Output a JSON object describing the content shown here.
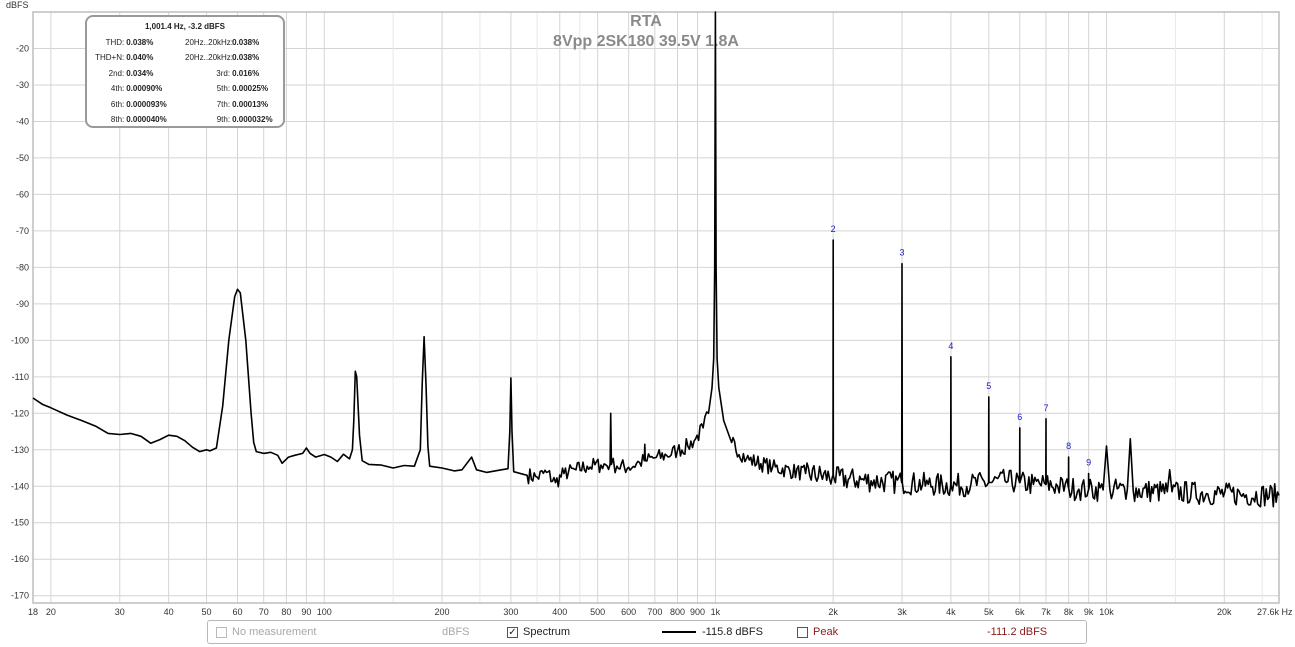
{
  "chart_data": {
    "type": "line",
    "title": "RTA",
    "subtitle": "8Vpp 2SK180 39.5V 1.8A",
    "ylabel": "dBFS",
    "xlabel": "Hz",
    "x_scale": "log",
    "xlim": [
      18,
      27600
    ],
    "ylim": [
      -172,
      -10
    ],
    "y_ticks": [
      -20,
      -30,
      -40,
      -50,
      -60,
      -70,
      -80,
      -90,
      -100,
      -110,
      -120,
      -130,
      -140,
      -150,
      -160,
      -170
    ],
    "x_ticks": [
      {
        "v": 18,
        "l": "18"
      },
      {
        "v": 20,
        "l": "20"
      },
      {
        "v": 30,
        "l": "30"
      },
      {
        "v": 40,
        "l": "40"
      },
      {
        "v": 50,
        "l": "50"
      },
      {
        "v": 60,
        "l": "60"
      },
      {
        "v": 70,
        "l": "70"
      },
      {
        "v": 80,
        "l": "80"
      },
      {
        "v": 90,
        "l": "90"
      },
      {
        "v": 100,
        "l": "100"
      },
      {
        "v": 200,
        "l": "200"
      },
      {
        "v": 300,
        "l": "300"
      },
      {
        "v": 400,
        "l": "400"
      },
      {
        "v": 500,
        "l": "500"
      },
      {
        "v": 600,
        "l": "600"
      },
      {
        "v": 700,
        "l": "700"
      },
      {
        "v": 800,
        "l": "800"
      },
      {
        "v": 900,
        "l": "900"
      },
      {
        "v": 1000,
        "l": "1k"
      },
      {
        "v": 2000,
        "l": "2k"
      },
      {
        "v": 3000,
        "l": "3k"
      },
      {
        "v": 4000,
        "l": "4k"
      },
      {
        "v": 5000,
        "l": "5k"
      },
      {
        "v": 6000,
        "l": "6k"
      },
      {
        "v": 7000,
        "l": "7k"
      },
      {
        "v": 8000,
        "l": "8k"
      },
      {
        "v": 9000,
        "l": "9k"
      },
      {
        "v": 10000,
        "l": "10k"
      },
      {
        "v": 20000,
        "l": "20k"
      },
      {
        "v": 27600,
        "l": "27.6k Hz"
      }
    ],
    "x_minor": [
      150,
      250,
      350,
      450,
      15000,
      25000
    ],
    "grid": true,
    "series": [
      {
        "color": "#000000",
        "points": [
          [
            18,
            -115.8
          ],
          [
            19,
            -117.5
          ],
          [
            20,
            -118.5
          ],
          [
            22,
            -120.5
          ],
          [
            24,
            -122
          ],
          [
            26,
            -123.5
          ],
          [
            28,
            -125.5
          ],
          [
            30,
            -125.8
          ],
          [
            32,
            -125.5
          ],
          [
            34,
            -126.3
          ],
          [
            36,
            -128.2
          ],
          [
            38,
            -127.2
          ],
          [
            40,
            -126
          ],
          [
            42,
            -126.3
          ],
          [
            44,
            -127.5
          ],
          [
            46,
            -129.3
          ],
          [
            48,
            -130.5
          ],
          [
            50,
            -130
          ],
          [
            51,
            -130.3
          ],
          [
            53,
            -129.5
          ],
          [
            55,
            -118
          ],
          [
            57,
            -100
          ],
          [
            59,
            -88
          ],
          [
            60,
            -86
          ],
          [
            61,
            -87
          ],
          [
            63,
            -100
          ],
          [
            65,
            -120
          ],
          [
            66,
            -128
          ],
          [
            67,
            -130.5
          ],
          [
            70,
            -131
          ],
          [
            73,
            -130.7
          ],
          [
            76,
            -131.5
          ],
          [
            78,
            -133.7
          ],
          [
            81,
            -132
          ],
          [
            84,
            -131.5
          ],
          [
            88,
            -131
          ],
          [
            90,
            -129.5
          ],
          [
            92,
            -131
          ],
          [
            95,
            -132
          ],
          [
            100,
            -131.3
          ],
          [
            104,
            -132
          ],
          [
            108,
            -133.2
          ],
          [
            112,
            -131.2
          ],
          [
            116,
            -132.5
          ],
          [
            118,
            -130
          ],
          [
            119,
            -122
          ],
          [
            120,
            -108.5
          ],
          [
            121,
            -110
          ],
          [
            123,
            -126
          ],
          [
            125,
            -133
          ],
          [
            130,
            -134
          ],
          [
            140,
            -134.2
          ],
          [
            150,
            -135
          ],
          [
            160,
            -134.3
          ],
          [
            170,
            -134.5
          ],
          [
            176,
            -130
          ],
          [
            178,
            -112
          ],
          [
            180,
            -99
          ],
          [
            182,
            -112
          ],
          [
            184,
            -129
          ],
          [
            186,
            -134.5
          ],
          [
            200,
            -135
          ],
          [
            215,
            -135.8
          ],
          [
            225,
            -135.5
          ],
          [
            238,
            -132
          ],
          [
            245,
            -135.5
          ],
          [
            260,
            -136.2
          ],
          [
            280,
            -135.6
          ],
          [
            295,
            -135.2
          ],
          [
            298,
            -125
          ],
          [
            300,
            -110.3
          ],
          [
            302,
            -125
          ],
          [
            305,
            -136
          ],
          [
            330,
            -137
          ],
          [
            350,
            -137.5
          ],
          [
            370,
            -136.2
          ],
          [
            390,
            -139
          ],
          [
            410,
            -136.5
          ],
          [
            440,
            -135.5
          ],
          [
            470,
            -134.5
          ],
          [
            510,
            -134.2
          ],
          [
            538,
            -134
          ],
          [
            540,
            -120
          ],
          [
            542,
            -134
          ],
          [
            560,
            -134.5
          ],
          [
            600,
            -134.8
          ],
          [
            640,
            -133.5
          ],
          [
            658,
            -133
          ],
          [
            660,
            -128.5
          ],
          [
            662,
            -133
          ],
          [
            700,
            -132.2
          ],
          [
            750,
            -131.5
          ],
          [
            800,
            -130.2
          ],
          [
            850,
            -129
          ],
          [
            890,
            -127
          ],
          [
            930,
            -124
          ],
          [
            960,
            -120
          ],
          [
            980,
            -113
          ],
          [
            990,
            -105
          ],
          [
            996,
            -80
          ],
          [
            1000,
            -10
          ],
          [
            1004,
            -80
          ],
          [
            1010,
            -105
          ],
          [
            1020,
            -113
          ],
          [
            1050,
            -122
          ],
          [
            1100,
            -128
          ],
          [
            1200,
            -132.5
          ],
          [
            1400,
            -134.8
          ],
          [
            1700,
            -136.5
          ],
          [
            1990,
            -137.5
          ],
          [
            1998,
            -137
          ],
          [
            2000,
            -72.5
          ],
          [
            2002,
            -137
          ],
          [
            2010,
            -137.8
          ],
          [
            2500,
            -138.5
          ],
          [
            2995,
            -139
          ],
          [
            3000,
            -79
          ],
          [
            3005,
            -139
          ],
          [
            3500,
            -139.5
          ],
          [
            3995,
            -139.8
          ],
          [
            4000,
            -104.5
          ],
          [
            4005,
            -139.8
          ],
          [
            4500,
            -139.5
          ],
          [
            4995,
            -139
          ],
          [
            5000,
            -115.5
          ],
          [
            5005,
            -139
          ],
          [
            5500,
            -138.5
          ],
          [
            5995,
            -139
          ],
          [
            6000,
            -124
          ],
          [
            6005,
            -139
          ],
          [
            6500,
            -139.5
          ],
          [
            6995,
            -139.5
          ],
          [
            7000,
            -121.5
          ],
          [
            7005,
            -139.5
          ],
          [
            7500,
            -140
          ],
          [
            7995,
            -140.5
          ],
          [
            8000,
            -132
          ],
          [
            8005,
            -140.5
          ],
          [
            8500,
            -140.8
          ],
          [
            8995,
            -140.8
          ],
          [
            9000,
            -136.5
          ],
          [
            9005,
            -141
          ],
          [
            9800,
            -141
          ],
          [
            10000,
            -129
          ],
          [
            10200,
            -141
          ],
          [
            11300,
            -141
          ],
          [
            11500,
            -127
          ],
          [
            11700,
            -141.2
          ],
          [
            14300,
            -141.5
          ],
          [
            14500,
            -135.5
          ],
          [
            14700,
            -141.5
          ],
          [
            18000,
            -142
          ],
          [
            22000,
            -142.3
          ],
          [
            27600,
            -142.5
          ]
        ]
      }
    ],
    "harmonic_labels": [
      {
        "label": "2",
        "x": 2000,
        "y": -72.5
      },
      {
        "label": "3",
        "x": 3000,
        "y": -79
      },
      {
        "label": "4",
        "x": 4000,
        "y": -104.5
      },
      {
        "label": "5",
        "x": 5000,
        "y": -115.5
      },
      {
        "label": "6",
        "x": 6000,
        "y": -124
      },
      {
        "label": "7",
        "x": 7000,
        "y": -121.5
      },
      {
        "label": "8",
        "x": 8000,
        "y": -132
      },
      {
        "label": "9",
        "x": 9000,
        "y": -136.5
      }
    ]
  },
  "stats": {
    "header": "1,001.4 Hz, -3.2 dBFS",
    "rows": [
      [
        {
          "label": "THD:",
          "value": "0.038%"
        },
        {
          "label": "20Hz..20kHz:",
          "value": "0.038%"
        }
      ],
      [
        {
          "label": "THD+N:",
          "value": "0.040%"
        },
        {
          "label": "20Hz..20kHz:",
          "value": "0.038%"
        }
      ],
      [
        {
          "label": "2nd:",
          "value": "0.034%"
        },
        {
          "label": "3rd:",
          "value": "0.016%"
        }
      ],
      [
        {
          "label": "4th:",
          "value": "0.00090%"
        },
        {
          "label": "5th:",
          "value": "0.00025%"
        }
      ],
      [
        {
          "label": "6th:",
          "value": "0.000093%"
        },
        {
          "label": "7th:",
          "value": "0.00013%"
        }
      ],
      [
        {
          "label": "8th:",
          "value": "0.000040%"
        },
        {
          "label": "9th:",
          "value": "0.000032%"
        }
      ]
    ]
  },
  "legend": {
    "no_measurement": "No measurement",
    "unit": "dBFS",
    "spectrum_label": "Spectrum",
    "spectrum_value": "-115.8 dBFS",
    "peak_label": "Peak",
    "peak_value": "-111.2 dBFS",
    "check_mark": "✓"
  }
}
